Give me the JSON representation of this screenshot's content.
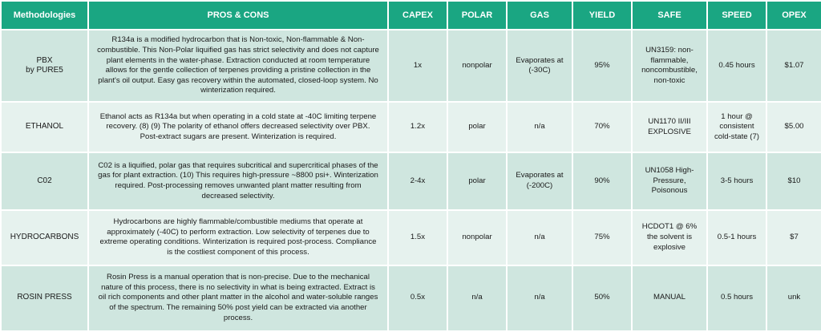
{
  "colors": {
    "header_bg": "#1aa682",
    "row_odd": "#cfe6df",
    "row_even": "#e6f2ee",
    "header_text": "#ffffff"
  },
  "headers": {
    "methodologies": "Methodologies",
    "pros_cons": "PROS & CONS",
    "capex": "CAPEX",
    "polar": "POLAR",
    "gas": "GAS",
    "yield": "YIELD",
    "safe": "SAFE",
    "speed": "SPEED",
    "opex": "OPEX"
  },
  "rows": [
    {
      "method_line1": "PBX",
      "method_line2": "by PURE5",
      "pros": "R134a is a modified hydrocarbon that is Non-toxic, Non-flammable & Non-combustible. This Non-Polar liquified gas has strict selectivity and does not capture plant elements in the water-phase. Extraction conducted at room temperature allows for the gentle collection of terpenes providing a pristine collection in the plant's oil output. Easy gas recovery within the automated, closed-loop system. No winterization required.",
      "capex": "1x",
      "polar": "nonpolar",
      "gas": "Evaporates at (-30C)",
      "yield": "95%",
      "safe": "UN3159: non-flammable, noncombustible, non-toxic",
      "speed": "0.45 hours",
      "opex": "$1.07"
    },
    {
      "method_line1": "ETHANOL",
      "method_line2": "",
      "pros": "Ethanol acts as R134a but when operating in a cold state at -40C limiting terpene recovery. (8) (9) The polarity of ethanol offers decreased selectivity over PBX. Post-extract sugars are present. Winterization is required.",
      "capex": "1.2x",
      "polar": "polar",
      "gas": "n/a",
      "yield": "70%",
      "safe": "UN1170 II/III EXPLOSIVE",
      "speed": "1 hour @ consistent cold-state (7)",
      "opex": "$5.00"
    },
    {
      "method_line1": "C02",
      "method_line2": "",
      "pros": "C02 is a liquified, polar gas that requires subcritical and supercritical phases of the gas for plant extraction. (10) This requires high-pressure ~8800 psi+. Winterization required. Post-processing removes unwanted plant matter resulting from decreased selectivity.",
      "capex": "2-4x",
      "polar": "polar",
      "gas": "Evaporates at (-200C)",
      "yield": "90%",
      "safe": "UN1058 High-Pressure, Poisonous",
      "speed": "3-5 hours",
      "opex": "$10"
    },
    {
      "method_line1": "HYDROCARBONS",
      "method_line2": "",
      "pros": "Hydrocarbons are highly flammable/combustible mediums that operate at approximately (-40C) to perform extraction. Low selectivity of terpenes due to extreme operating conditions. Winterization is required post-process. Compliance is the costliest component of this process.",
      "capex": "1.5x",
      "polar": "nonpolar",
      "gas": "n/a",
      "yield": "75%",
      "safe": "HCDOT1 @ 6% the solvent is explosive",
      "speed": "0.5-1 hours",
      "opex": "$7"
    },
    {
      "method_line1": "ROSIN PRESS",
      "method_line2": "",
      "pros": "Rosin Press is a manual operation that is non-precise. Due to the mechanical nature of this process, there is no selectivity in what is being extracted. Extract is oil rich components and other plant matter in the alcohol and water-soluble ranges of the spectrum. The remaining 50% post yield can be extracted via another process.",
      "capex": "0.5x",
      "polar": "n/a",
      "gas": "n/a",
      "yield": "50%",
      "safe": "MANUAL",
      "speed": "0.5 hours",
      "opex": "unk"
    }
  ]
}
